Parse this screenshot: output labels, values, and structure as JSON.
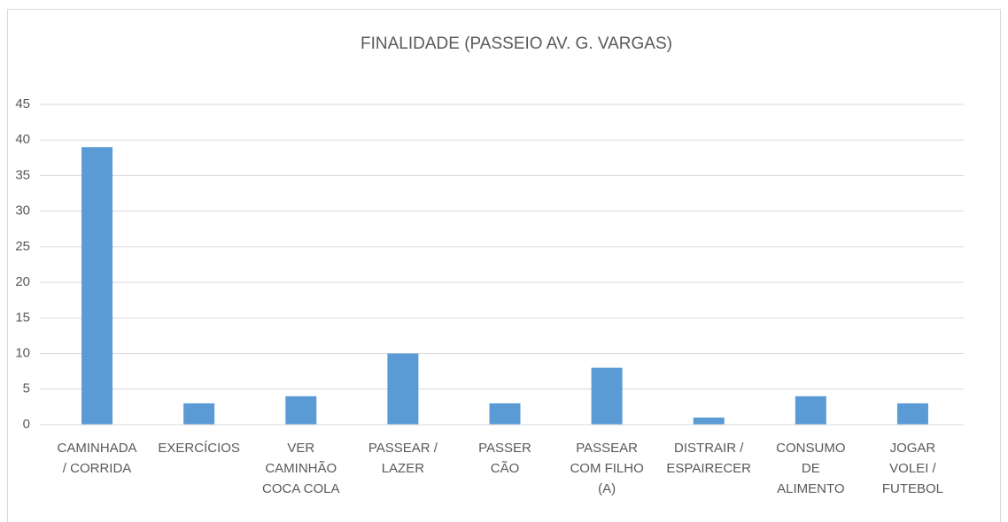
{
  "chart_data": {
    "type": "bar",
    "title": "FINALIDADE (PASSEIO AV. G. VARGAS)",
    "categories": [
      "CAMINHADA / CORRIDA",
      "EXERCÍCIOS",
      "VER CAMINHÃO COCA COLA",
      "PASSEAR / LAZER",
      "PASSER CÃO",
      "PASSEAR COM FILHO (A)",
      "DISTRAIR / ESPAIRECER",
      "CONSUMO DE ALIMENTO",
      "JOGAR VOLEI / FUTEBOL"
    ],
    "values": [
      39,
      3,
      4,
      10,
      3,
      8,
      1,
      4,
      3
    ],
    "color": "#5b9bd5",
    "ylim": [
      0,
      45
    ],
    "yticks": [
      0,
      5,
      10,
      15,
      20,
      25,
      30,
      35,
      40,
      45
    ],
    "grid": true
  }
}
